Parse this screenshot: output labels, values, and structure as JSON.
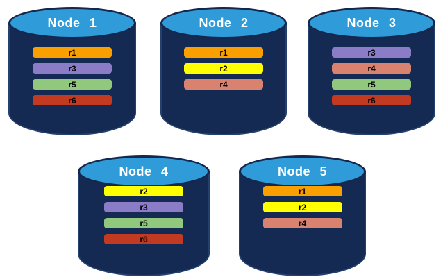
{
  "colors": {
    "background": "#FFFFFF",
    "cylinder_body": "#152A52",
    "cylinder_body_edge": "#24406C",
    "cylinder_top": "#2F9BD9",
    "cylinder_outline": "#14274D",
    "node_label_text": "#FFFFFF",
    "replica_label_text": "#000000"
  },
  "replica_colors": {
    "r1": "#F9A000",
    "r2": "#FFFF00",
    "r3": "#8B7CC7",
    "r4": "#D9826F",
    "r5": "#90C97E",
    "r6": "#C23A22"
  },
  "nodes": [
    {
      "label": "Node 1",
      "replicas": [
        "r1",
        "r3",
        "r5",
        "r6"
      ]
    },
    {
      "label": "Node 2",
      "replicas": [
        "r1",
        "r2",
        "r4"
      ]
    },
    {
      "label": "Node 3",
      "replicas": [
        "r3",
        "r4",
        "r5",
        "r6"
      ]
    },
    {
      "label": "Node 4",
      "replicas": [
        "r2",
        "r3",
        "r5",
        "r6"
      ]
    },
    {
      "label": "Node 5",
      "replicas": [
        "r1",
        "r2",
        "r4"
      ]
    }
  ]
}
